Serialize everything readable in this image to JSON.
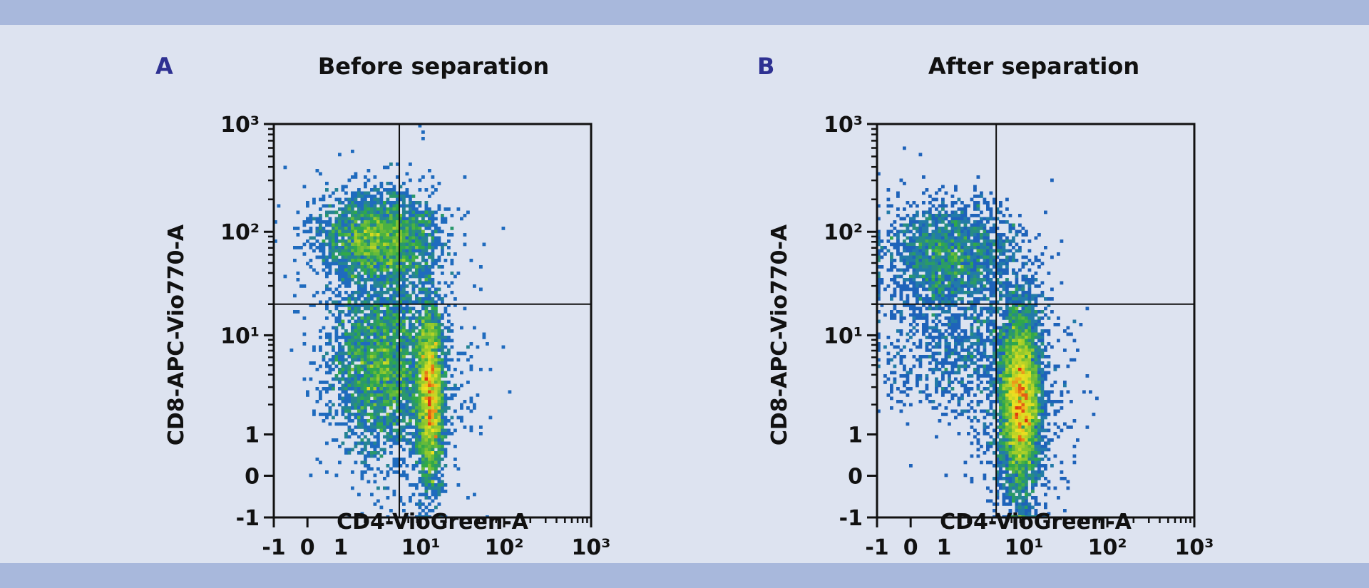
{
  "colors": {
    "background": "#dde3f0",
    "band": "#a8b8dc",
    "panel_letter": "#2e3192",
    "axis": "#111111"
  },
  "chart_data": [
    {
      "type": "heatmap",
      "panel_label": "A",
      "title": "Before separation",
      "xlabel": "CD4-VioGreen-A",
      "ylabel": "CD8-APC-Vio770-A",
      "x_ticks": [
        -1,
        0,
        1,
        10,
        100,
        1000
      ],
      "x_tick_labels": [
        "-1",
        "0",
        "1",
        "10¹",
        "10²",
        "10³"
      ],
      "y_ticks": [
        -1,
        0,
        1,
        10,
        100,
        1000
      ],
      "y_tick_labels": [
        "-1",
        "0",
        "1",
        "10¹",
        "10²",
        "10³"
      ],
      "xlim": [
        -1,
        1000
      ],
      "ylim": [
        -1,
        1000
      ],
      "scale": "biexponential",
      "gates": {
        "x": 5.4,
        "y": 20
      },
      "colormap": [
        "#1b2a9e",
        "#1f6fc0",
        "#2fa84a",
        "#9ccc2a",
        "#f0e020",
        "#e03010"
      ],
      "populations": [
        {
          "x": 3,
          "y": 85,
          "sx_dec": 0.35,
          "sy_dec": 0.22,
          "weight": 0.3
        },
        {
          "x": 3.2,
          "y": 5,
          "sx_dec": 0.3,
          "sy_dec": 0.45,
          "weight": 0.35
        },
        {
          "x": 13,
          "y": 2.5,
          "sx_dec": 0.08,
          "sy_dec": 0.45,
          "weight": 0.35
        }
      ]
    },
    {
      "type": "heatmap",
      "panel_label": "B",
      "title": "After separation",
      "xlabel": "CD4-VioGreen-A",
      "ylabel": "CD8-APC-Vio770-A",
      "x_ticks": [
        -1,
        0,
        1,
        10,
        100,
        1000
      ],
      "x_tick_labels": [
        "-1",
        "0",
        "1",
        "10¹",
        "10²",
        "10³"
      ],
      "y_ticks": [
        -1,
        0,
        1,
        10,
        100,
        1000
      ],
      "y_tick_labels": [
        "-1",
        "0",
        "1",
        "10¹",
        "10²",
        "10³"
      ],
      "xlim": [
        -1,
        1000
      ],
      "ylim": [
        -1,
        1000
      ],
      "scale": "biexponential",
      "gates": {
        "x": 4.5,
        "y": 20
      },
      "colormap": [
        "#1b2a9e",
        "#1f6fc0",
        "#2fa84a",
        "#9ccc2a",
        "#f0e020",
        "#e03010"
      ],
      "populations": [
        {
          "x": 1.2,
          "y": 60,
          "sx_dec": 0.4,
          "sy_dec": 0.25,
          "weight": 0.22
        },
        {
          "x": 1.5,
          "y": 8,
          "sx_dec": 0.45,
          "sy_dec": 0.35,
          "weight": 0.1
        },
        {
          "x": 9,
          "y": 2.2,
          "sx_dec": 0.12,
          "sy_dec": 0.45,
          "weight": 0.68
        }
      ]
    }
  ]
}
